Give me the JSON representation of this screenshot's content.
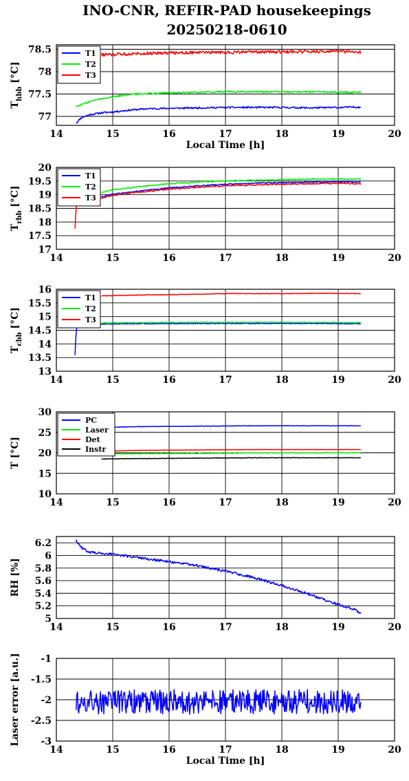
{
  "title_line1": "INO-CNR, REFIR-PAD housekeepings",
  "title_line2": "20250218-0610",
  "colors": {
    "blue": "#0000ff",
    "green": "#00ee00",
    "red": "#ff0000",
    "black": "#000000"
  },
  "chart_data": [
    {
      "type": "line",
      "xlabel": "Local Time [h]",
      "ylabel": "T_hbb [°C]",
      "ylabel_main": "T",
      "ylabel_sub": "hbb",
      "ylabel_unit": " [°C]",
      "xlim": [
        14,
        20
      ],
      "ylim": [
        76.8,
        78.6
      ],
      "xticks": [
        "14",
        "15",
        "16",
        "17",
        "18",
        "19",
        "20"
      ],
      "yticks": [
        "77",
        "77.5",
        "78",
        "78.5"
      ],
      "ytick_values": [
        77,
        77.5,
        78,
        78.5
      ],
      "grid": true,
      "legend": "top-left",
      "series": [
        {
          "name": "T1",
          "color": "blue",
          "x": [
            14.35,
            14.45,
            14.6,
            14.8,
            15.0,
            15.3,
            15.6,
            16.0,
            16.5,
            17.0,
            17.5,
            18.0,
            18.5,
            19.0,
            19.4
          ],
          "y": [
            76.85,
            76.98,
            77.04,
            77.08,
            77.1,
            77.14,
            77.17,
            77.18,
            77.19,
            77.2,
            77.2,
            77.2,
            77.19,
            77.2,
            77.21
          ],
          "noise": 0.02
        },
        {
          "name": "T2",
          "color": "green",
          "x": [
            14.35,
            14.5,
            14.7,
            15.0,
            15.3,
            15.6,
            16.0,
            16.5,
            17.0,
            17.5,
            18.0,
            18.5,
            19.0,
            19.4
          ],
          "y": [
            77.22,
            77.29,
            77.37,
            77.44,
            77.49,
            77.51,
            77.53,
            77.54,
            77.55,
            77.55,
            77.55,
            77.55,
            77.54,
            77.54
          ],
          "noise": 0.02
        },
        {
          "name": "T3",
          "color": "red",
          "x": [
            14.8,
            15.0,
            15.5,
            16.0,
            16.5,
            17.0,
            17.5,
            18.0,
            18.5,
            19.0,
            19.4
          ],
          "y": [
            78.38,
            78.38,
            78.41,
            78.42,
            78.43,
            78.43,
            78.44,
            78.44,
            78.45,
            78.45,
            78.43
          ],
          "noise": 0.035
        }
      ]
    },
    {
      "type": "line",
      "xlabel": "",
      "ylabel": "T_rbb [°C]",
      "ylabel_main": "T",
      "ylabel_sub": "rbb",
      "ylabel_unit": " [°C]",
      "xlim": [
        14,
        20
      ],
      "ylim": [
        17,
        20
      ],
      "xticks": [
        "14",
        "15",
        "16",
        "17",
        "18",
        "19",
        "20"
      ],
      "yticks": [
        "17",
        "17.5",
        "18",
        "18.5",
        "19",
        "19.5",
        "20"
      ],
      "ytick_values": [
        17,
        17.5,
        18,
        18.5,
        19,
        19.5,
        20
      ],
      "grid": true,
      "legend": "top-left",
      "series": [
        {
          "name": "T1",
          "color": "blue",
          "x": [
            14.8,
            15.0,
            15.5,
            16.0,
            16.5,
            17.0,
            17.5,
            18.0,
            18.5,
            19.0,
            19.4
          ],
          "y": [
            18.92,
            19.02,
            19.14,
            19.25,
            19.32,
            19.38,
            19.42,
            19.44,
            19.46,
            19.47,
            19.47
          ],
          "noise": 0.02
        },
        {
          "name": "T2",
          "color": "green",
          "x": [
            14.8,
            15.0,
            15.5,
            16.0,
            16.5,
            17.0,
            17.5,
            18.0,
            18.5,
            19.0,
            19.4
          ],
          "y": [
            19.08,
            19.18,
            19.3,
            19.4,
            19.46,
            19.5,
            19.53,
            19.55,
            19.57,
            19.57,
            19.57
          ],
          "noise": 0.02
        },
        {
          "name": "T3",
          "color": "red",
          "x": [
            14.33,
            14.34,
            14.35,
            14.37,
            14.8,
            15.0,
            15.5,
            16.0,
            16.5,
            17.0,
            17.5,
            18.0,
            18.5,
            19.0,
            19.4
          ],
          "y": [
            17.75,
            18.1,
            18.5,
            18.8,
            18.87,
            18.98,
            19.1,
            19.2,
            19.27,
            19.32,
            19.36,
            19.38,
            19.4,
            19.42,
            19.4
          ],
          "noise": 0.025
        }
      ]
    },
    {
      "type": "line",
      "xlabel": "",
      "ylabel": "T_cbb [°C]",
      "ylabel_main": "T",
      "ylabel_sub": "cbb",
      "ylabel_unit": " [°C]",
      "xlim": [
        14,
        20
      ],
      "ylim": [
        13,
        16
      ],
      "xticks": [
        "14",
        "15",
        "16",
        "17",
        "18",
        "19",
        "20"
      ],
      "yticks": [
        "13",
        "13.5",
        "14",
        "14.5",
        "15",
        "15.5",
        "16"
      ],
      "ytick_values": [
        13,
        13.5,
        14,
        14.5,
        15,
        15.5,
        16
      ],
      "grid": true,
      "legend": "top-left",
      "series": [
        {
          "name": "T1",
          "color": "blue",
          "x": [
            14.33,
            14.34,
            14.35,
            14.37,
            14.8,
            15.5,
            16.5,
            17.5,
            18.5,
            19.4
          ],
          "y": [
            13.6,
            14.0,
            14.4,
            14.7,
            14.73,
            14.74,
            14.75,
            14.75,
            14.75,
            14.74
          ],
          "noise": 0.015
        },
        {
          "name": "T2",
          "color": "green",
          "x": [
            14.8,
            15.5,
            16.5,
            17.5,
            18.5,
            19.4
          ],
          "y": [
            14.77,
            14.78,
            14.79,
            14.79,
            14.79,
            14.78
          ],
          "noise": 0.015
        },
        {
          "name": "T3",
          "color": "red",
          "x": [
            14.8,
            15.5,
            16.0,
            16.5,
            17.0,
            17.5,
            18.0,
            18.5,
            19.0,
            19.4
          ],
          "y": [
            15.76,
            15.79,
            15.8,
            15.82,
            15.84,
            15.84,
            15.84,
            15.85,
            15.85,
            15.84
          ],
          "noise": 0.012
        }
      ]
    },
    {
      "type": "line",
      "xlabel": "",
      "ylabel": "T [°C]",
      "ylabel_main": "T [°C]",
      "ylabel_sub": "",
      "ylabel_unit": "",
      "xlim": [
        14,
        20
      ],
      "ylim": [
        10,
        30
      ],
      "xticks": [
        "14",
        "15",
        "16",
        "17",
        "18",
        "19",
        "20"
      ],
      "yticks": [
        "10",
        "15",
        "20",
        "25",
        "30"
      ],
      "ytick_values": [
        10,
        15,
        20,
        25,
        30
      ],
      "grid": true,
      "legend": "top-left",
      "series": [
        {
          "name": "PC",
          "color": "blue",
          "x": [
            14.8,
            15.5,
            16.5,
            17.5,
            18.5,
            19.4
          ],
          "y": [
            26.2,
            26.4,
            26.5,
            26.6,
            26.6,
            26.6
          ],
          "noise": 0.05
        },
        {
          "name": "Laser",
          "color": "green",
          "x": [
            14.8,
            15.5,
            16.5,
            17.5,
            18.5,
            19.4
          ],
          "y": [
            19.7,
            19.8,
            19.9,
            20.0,
            20.0,
            20.0
          ],
          "noise": 0.08
        },
        {
          "name": "Det",
          "color": "red",
          "x": [
            14.8,
            15.5,
            16.5,
            17.5,
            18.5,
            19.4
          ],
          "y": [
            20.4,
            20.6,
            20.7,
            20.8,
            20.8,
            20.8
          ],
          "noise": 0.05
        },
        {
          "name": "Instr",
          "color": "black",
          "x": [
            14.8,
            15.5,
            16.5,
            17.5,
            18.5,
            19.4
          ],
          "y": [
            18.5,
            18.6,
            18.7,
            18.8,
            18.8,
            18.8
          ],
          "noise": 0.06
        }
      ]
    },
    {
      "type": "line",
      "xlabel": "",
      "ylabel": "RH [%]",
      "ylabel_main": "RH [%]",
      "ylabel_sub": "",
      "ylabel_unit": "",
      "xlim": [
        14,
        20
      ],
      "ylim": [
        5,
        6.3
      ],
      "xticks": [
        "14",
        "15",
        "16",
        "17",
        "18",
        "19",
        "20"
      ],
      "yticks": [
        "5",
        "5.2",
        "5.4",
        "5.6",
        "5.8",
        "6",
        "6.2"
      ],
      "ytick_values": [
        5,
        5.2,
        5.4,
        5.6,
        5.8,
        6,
        6.2
      ],
      "grid": true,
      "legend": "none",
      "series": [
        {
          "name": "",
          "color": "blue",
          "x": [
            14.35,
            14.45,
            14.6,
            15.0,
            15.5,
            16.0,
            16.5,
            17.0,
            17.5,
            18.0,
            18.5,
            19.0,
            19.3,
            19.4
          ],
          "y": [
            6.24,
            6.12,
            6.05,
            6.02,
            5.96,
            5.9,
            5.84,
            5.75,
            5.65,
            5.52,
            5.38,
            5.22,
            5.14,
            5.08
          ],
          "noise": 0.02
        }
      ]
    },
    {
      "type": "line",
      "xlabel": "Local Time [h]",
      "ylabel": "Laser error [a.u.]",
      "ylabel_main": "Laser error [a.u.]",
      "ylabel_sub": "",
      "ylabel_unit": "",
      "xlim": [
        14,
        20
      ],
      "ylim": [
        -3,
        -1
      ],
      "xticks": [
        "14",
        "15",
        "16",
        "17",
        "18",
        "19",
        "20"
      ],
      "yticks": [
        "-3",
        "-2.5",
        "-2",
        "-1.5",
        "-1"
      ],
      "ytick_values": [
        -3,
        -2.5,
        -2,
        -1.5,
        -1
      ],
      "grid": true,
      "legend": "none",
      "series": [
        {
          "name": "",
          "color": "blue",
          "x": [
            14.35,
            19.4
          ],
          "y": [
            -2.05,
            -2.05
          ],
          "noise": 0.3
        }
      ]
    }
  ]
}
